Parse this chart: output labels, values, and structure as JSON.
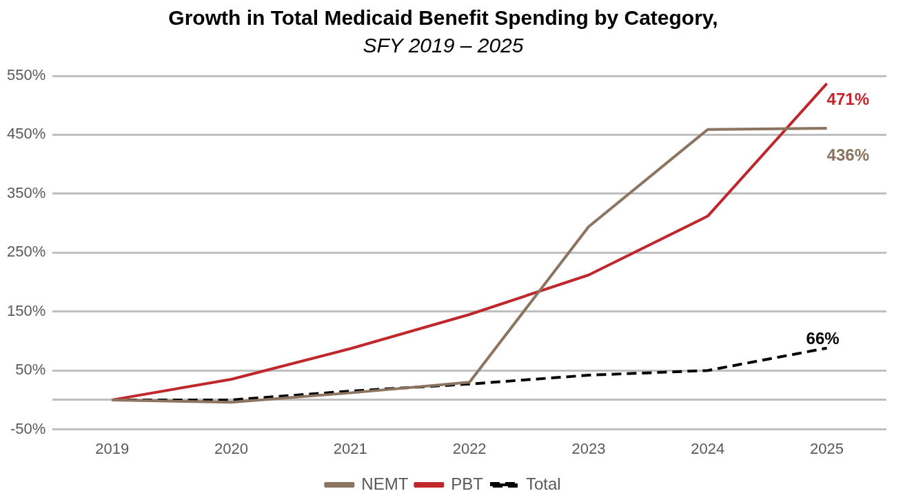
{
  "chart_data": {
    "type": "line",
    "title": "Growth in Total Medicaid Benefit Spending by Category,",
    "subtitle": "SFY 2019 – 2025",
    "categories": [
      "2019",
      "2020",
      "2021",
      "2022",
      "2023",
      "2024",
      "2025"
    ],
    "series": [
      {
        "name": "NEMT",
        "color": "#8b7460",
        "values": [
          0,
          -4,
          12,
          30,
          294,
          459,
          461
        ]
      },
      {
        "name": "PBT",
        "color": "#c0272d",
        "values": [
          0,
          35,
          87,
          145,
          212,
          312,
          537
        ]
      },
      {
        "name": "Total",
        "color": "#000000",
        "line_style": "dashed",
        "values": [
          0,
          0,
          15,
          27,
          42,
          50,
          88
        ]
      }
    ],
    "annotations": [
      "436%",
      "471%",
      "66%"
    ],
    "ylim": [
      -50,
      550
    ],
    "yticks": [
      {
        "value": -50,
        "label": "-50%"
      },
      {
        "value": 0,
        "label": null
      },
      {
        "value": 50,
        "label": "50%"
      },
      {
        "value": 150,
        "label": "150%"
      },
      {
        "value": 250,
        "label": "250%"
      },
      {
        "value": 350,
        "label": "350%"
      },
      {
        "value": 450,
        "label": "450%"
      },
      {
        "value": 550,
        "label": "550%"
      }
    ],
    "grid": "y",
    "legend": "bottom",
    "marker": "none"
  }
}
